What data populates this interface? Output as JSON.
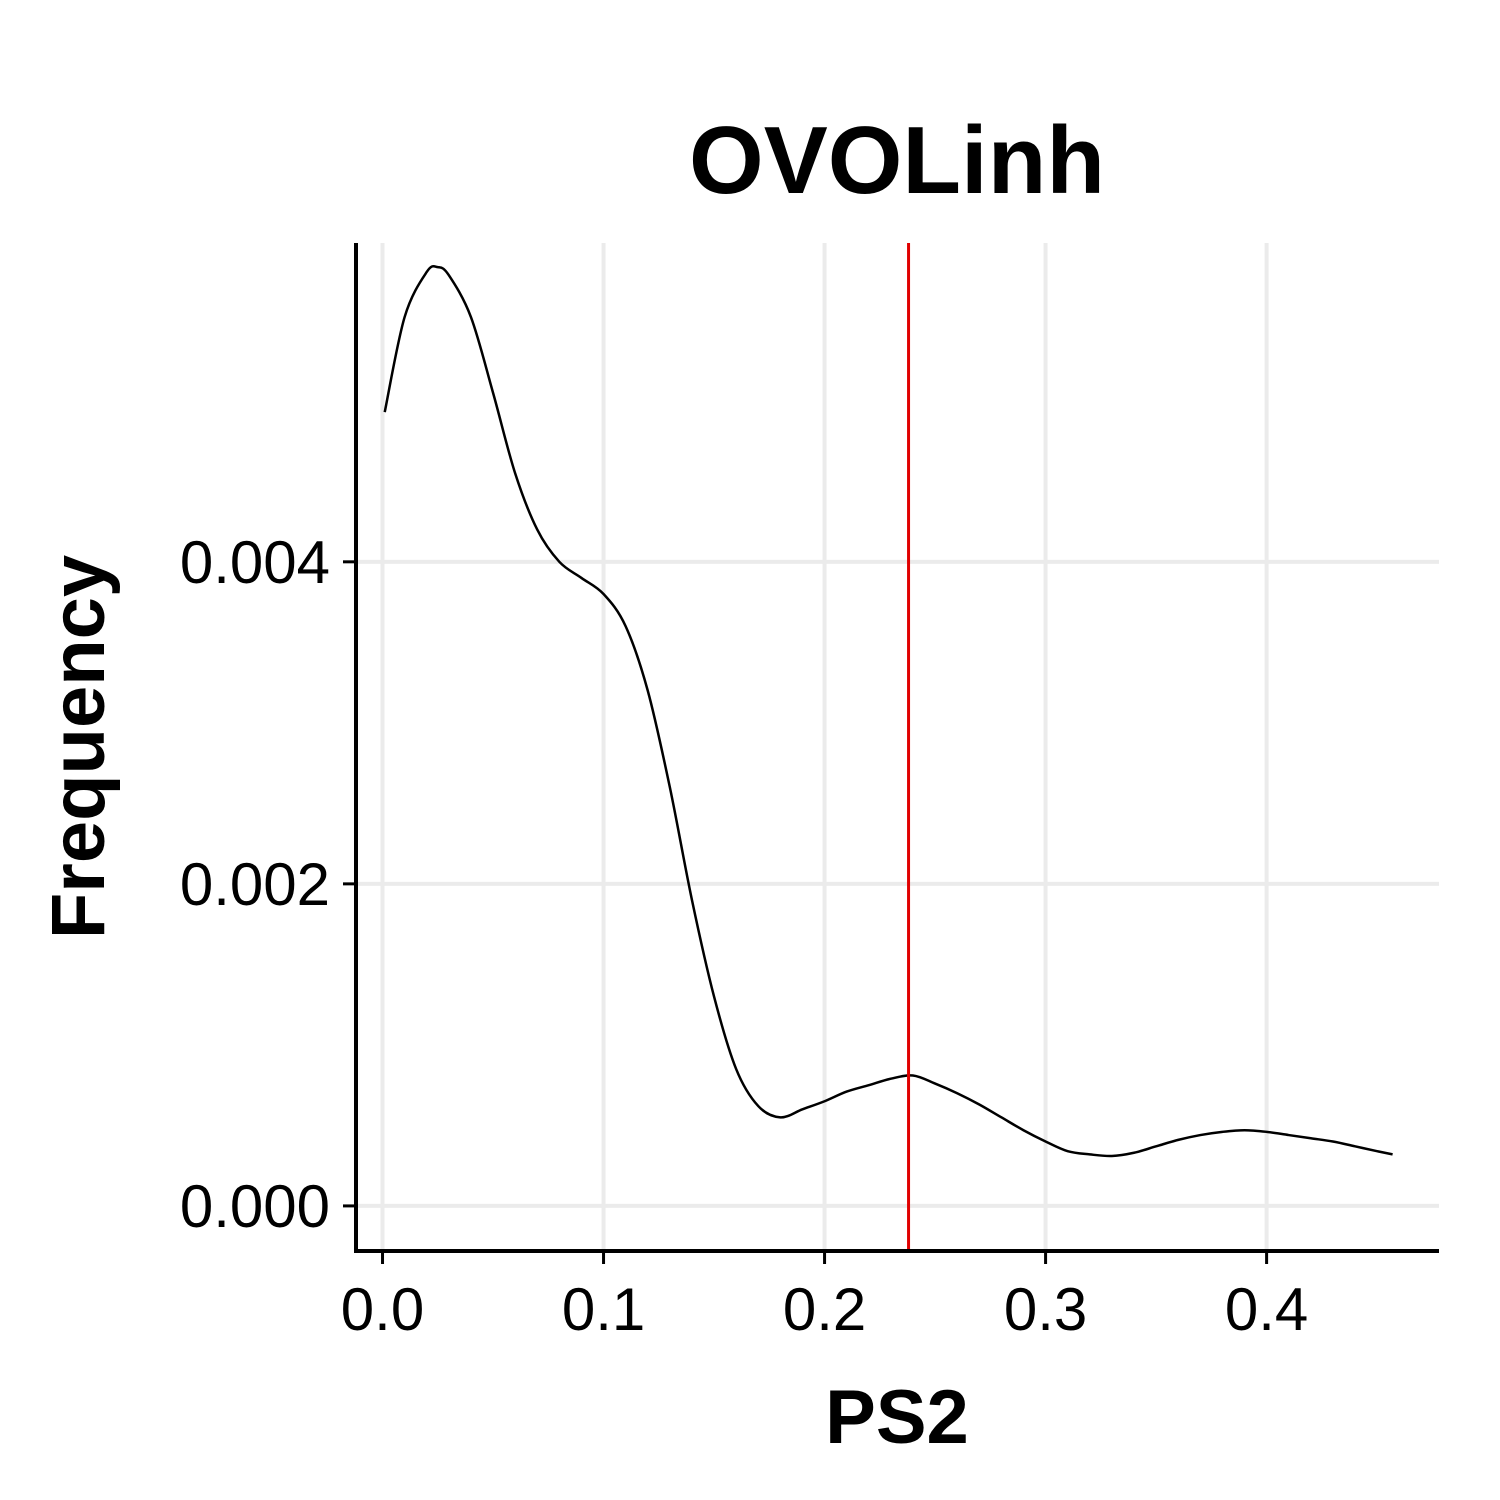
{
  "chart_data": {
    "type": "line",
    "title": "OVOLinh",
    "xlabel": "PS2",
    "ylabel": "Frequency",
    "xlim": [
      -0.012,
      0.478
    ],
    "ylim": [
      -0.00028,
      0.00598
    ],
    "x_ticks": [
      0.0,
      0.1,
      0.2,
      0.3,
      0.4
    ],
    "x_tick_labels": [
      "0.0",
      "0.1",
      "0.2",
      "0.3",
      "0.4"
    ],
    "y_ticks": [
      0.0,
      0.002,
      0.004
    ],
    "y_tick_labels": [
      "0.000",
      "0.002",
      "0.004"
    ],
    "grid": true,
    "legend": "none",
    "series": [
      {
        "color": "#000000",
        "x": [
          0.001,
          0.01,
          0.02,
          0.025,
          0.03,
          0.04,
          0.05,
          0.06,
          0.07,
          0.08,
          0.09,
          0.1,
          0.11,
          0.12,
          0.13,
          0.14,
          0.15,
          0.16,
          0.17,
          0.18,
          0.19,
          0.2,
          0.21,
          0.22,
          0.23,
          0.24,
          0.25,
          0.26,
          0.27,
          0.28,
          0.29,
          0.3,
          0.31,
          0.32,
          0.33,
          0.34,
          0.35,
          0.36,
          0.37,
          0.38,
          0.39,
          0.4,
          0.41,
          0.42,
          0.43,
          0.44,
          0.45,
          0.457
        ],
        "y": [
          0.00493,
          0.00552,
          0.0058,
          0.00583,
          0.00578,
          0.00552,
          0.00505,
          0.00455,
          0.0042,
          0.004,
          0.0039,
          0.0038,
          0.0036,
          0.0032,
          0.0026,
          0.0019,
          0.0013,
          0.00085,
          0.00062,
          0.00055,
          0.0006,
          0.00065,
          0.00071,
          0.00075,
          0.00079,
          0.00081,
          0.00076,
          0.0007,
          0.00063,
          0.00055,
          0.00047,
          0.0004,
          0.00034,
          0.00032,
          0.00031,
          0.00033,
          0.00037,
          0.00041,
          0.00044,
          0.00046,
          0.00047,
          0.00046,
          0.00044,
          0.00042,
          0.0004,
          0.00037,
          0.00034,
          0.00032
        ]
      }
    ],
    "reference_lines": [
      {
        "axis": "x",
        "value": 0.238,
        "color": "#e00000"
      }
    ]
  }
}
